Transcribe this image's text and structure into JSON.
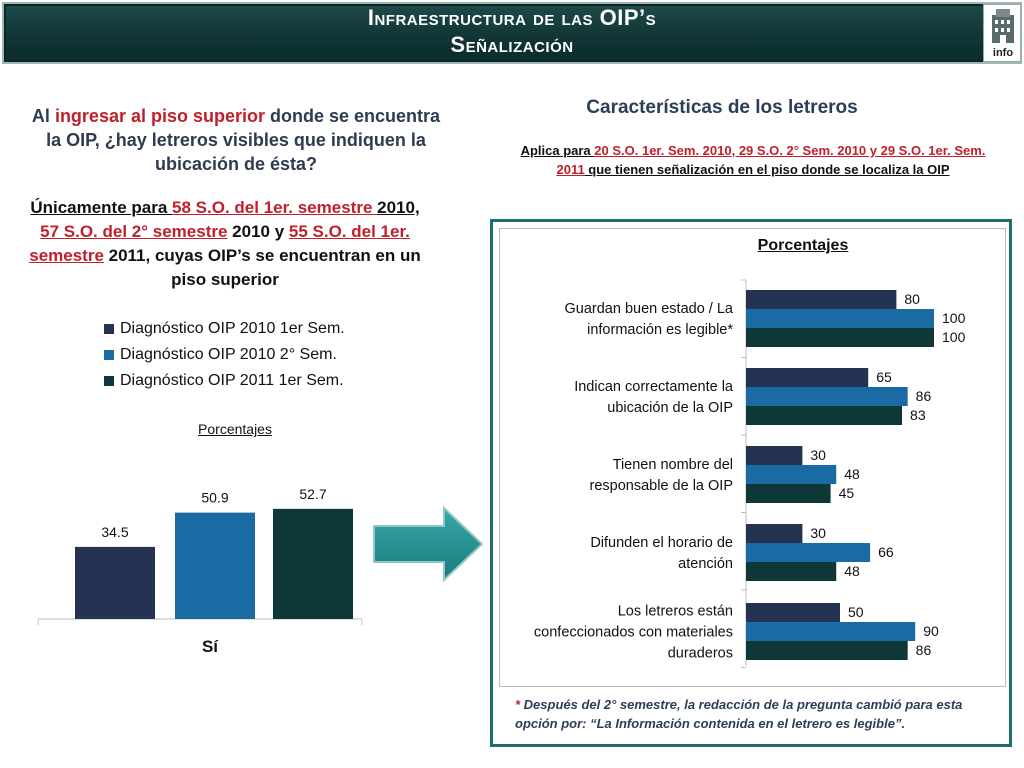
{
  "header": {
    "title_line1": "Infraestructura de las OIP’s",
    "title_line2": "Señalización",
    "logo_text": "info"
  },
  "left": {
    "question_pre": "Al ",
    "question_red": "ingresar al piso superior",
    "question_post": " donde se encuentra la OIP, ¿hay letreros visibles que indiquen la ubicación de ésta?",
    "scope_parts": {
      "p1": "Únicamente para ",
      "r1": "58 S.O. del 1er. semestre ",
      "p2": "2010, ",
      "r2": "57 S.O. del 2° semestre",
      "p3": " 2010 y ",
      "r3": "55 S.O. del 1er. semestre",
      "p4": " 2011, cuyas OIP’s se encuentran en un piso superior"
    }
  },
  "right": {
    "heading": "Características de los letreros",
    "applies_parts": {
      "p1": "Aplica para ",
      "r1": "20 S.O. 1er. Sem. 2010, 29 S.O. 2° Sem. 2010  y 29 S.O. 1er. Sem. 2011",
      "p2": " que tienen señalización en el piso donde se localiza la OIP"
    },
    "footnote_star": "* ",
    "footnote_text": "Después del 2° semestre, la redacción de la pregunta cambió para esta opción por: “La Información contenida en el letrero es legible”."
  },
  "colors": {
    "series1": "#253352",
    "series2": "#1a6aa3",
    "series3": "#0e3838",
    "arrow": "#1e8a8a"
  },
  "chart_data": [
    {
      "type": "bar",
      "title": "Porcentajes",
      "categories": [
        "Sí"
      ],
      "series": [
        {
          "name": "Diagnóstico OIP 2010 1er Sem.",
          "values": [
            34.5
          ]
        },
        {
          "name": "Diagnóstico OIP 2010 2° Sem.",
          "values": [
            50.9
          ]
        },
        {
          "name": "Diagnóstico OIP 2011 1er Sem.",
          "values": [
            52.7
          ]
        }
      ],
      "ylim": [
        0,
        60
      ],
      "legend": "top-left",
      "grid": false
    },
    {
      "type": "bar",
      "orientation": "horizontal",
      "title": "Porcentajes",
      "categories": [
        [
          "Guardan buen estado / La",
          "información es legible*"
        ],
        [
          "Indican correctamente la",
          "ubicación de la OIP"
        ],
        [
          "Tienen nombre del",
          "responsable de la OIP"
        ],
        [
          "Difunden el horario de",
          "atención"
        ],
        [
          "Los letreros están",
          "confeccionados con materiales",
          "duraderos"
        ]
      ],
      "series": [
        {
          "name": "Diagnóstico OIP 2010 1er Sem.",
          "values": [
            80,
            65,
            30,
            30,
            50
          ]
        },
        {
          "name": "Diagnóstico OIP 2010 2° Sem.",
          "values": [
            100,
            86,
            48,
            66,
            90
          ]
        },
        {
          "name": "Diagnóstico OIP 2011 1er Sem.",
          "values": [
            100,
            83,
            45,
            48,
            86
          ]
        }
      ],
      "xlim": [
        0,
        100
      ],
      "grid": false
    }
  ]
}
